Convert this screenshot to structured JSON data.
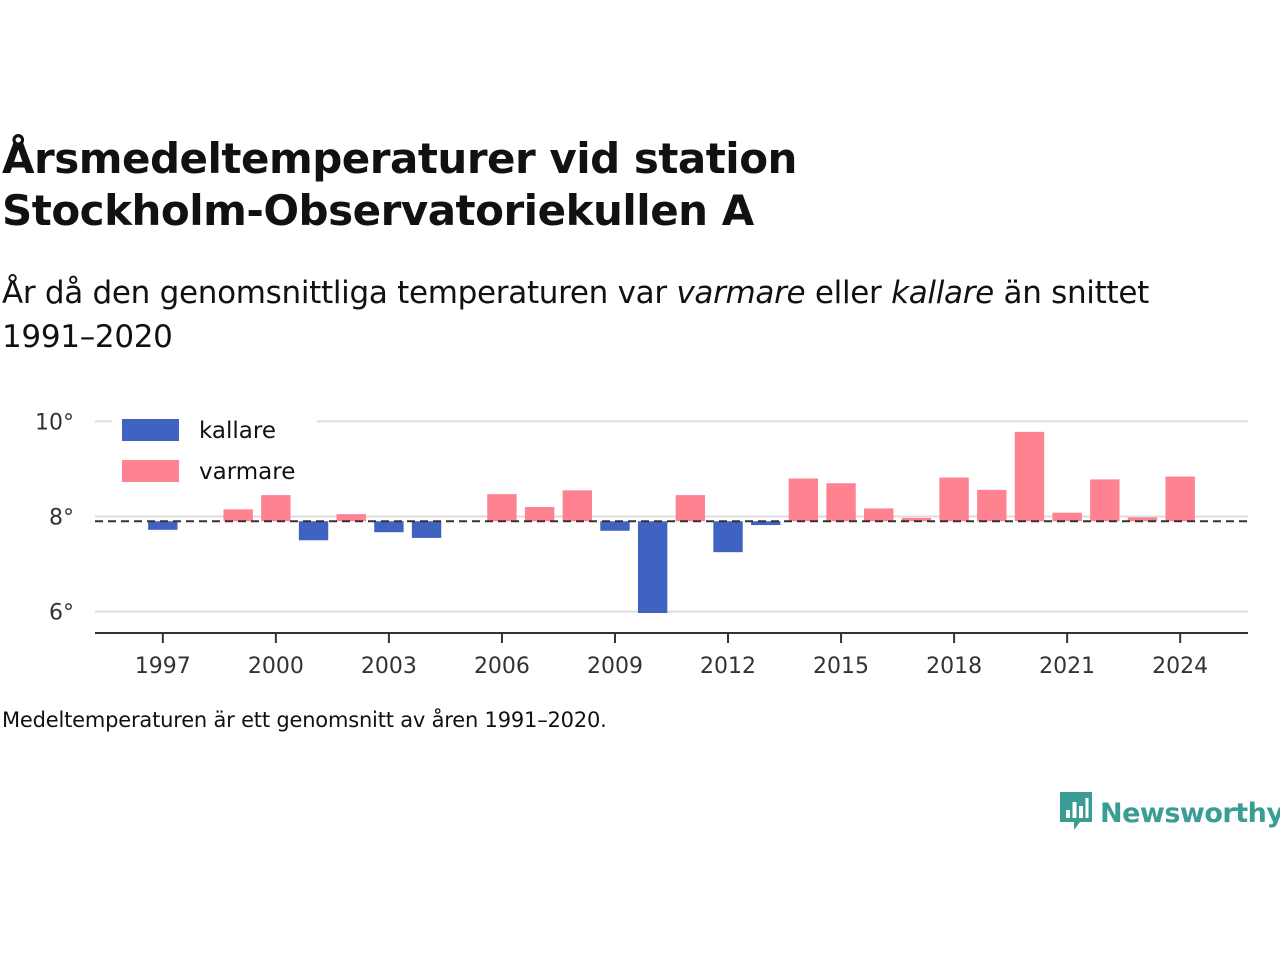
{
  "header": {
    "title_line1": "Årsmedeltemperaturer vid station",
    "title_line2": "Stockholm-Observatoriekullen A",
    "subtitle_pre": "År då den genomsnittliga temperaturen var ",
    "subtitle_warm": "varmare",
    "subtitle_mid": " eller ",
    "subtitle_cold": "kallare",
    "subtitle_post": " än snittet 1991–2020"
  },
  "chart_data": {
    "type": "bar",
    "baseline": 7.9,
    "ylim": [
      5.55,
      10.45
    ],
    "xlim": [
      1995.2,
      2025.8
    ],
    "yticks": [
      6,
      8,
      10
    ],
    "ytick_labels": [
      "6°",
      "8°",
      "10°"
    ],
    "xticks": [
      1997,
      2000,
      2003,
      2006,
      2009,
      2012,
      2015,
      2018,
      2021,
      2024
    ],
    "xtick_labels": [
      "1997",
      "2000",
      "2003",
      "2006",
      "2009",
      "2012",
      "2015",
      "2018",
      "2021",
      "2024"
    ],
    "grid": true,
    "legend_position": "top-left",
    "series": [
      {
        "name": "kallare",
        "color": "#4063c1",
        "x": [
          1997,
          2001,
          2003,
          2004,
          2009,
          2010,
          2012,
          2013
        ],
        "values": [
          7.72,
          7.5,
          7.67,
          7.55,
          7.7,
          5.97,
          7.25,
          7.82
        ]
      },
      {
        "name": "varmare",
        "color": "#ff8290",
        "x": [
          1999,
          2000,
          2002,
          2006,
          2007,
          2008,
          2011,
          2014,
          2015,
          2016,
          2017,
          2018,
          2019,
          2020,
          2021,
          2022,
          2023,
          2024
        ],
        "values": [
          8.15,
          8.45,
          8.05,
          8.47,
          8.2,
          8.55,
          8.45,
          8.8,
          8.7,
          8.17,
          7.97,
          8.82,
          8.56,
          9.78,
          8.08,
          8.78,
          7.98,
          8.84
        ]
      }
    ]
  },
  "footer": {
    "note": "Medeltemperaturen är ett genomsnitt av åren 1991–2020.",
    "brand": "Newsworthy",
    "brand_color": "#3a9d94",
    "brand_icon": "bar-chart-speech-bubble-icon"
  }
}
